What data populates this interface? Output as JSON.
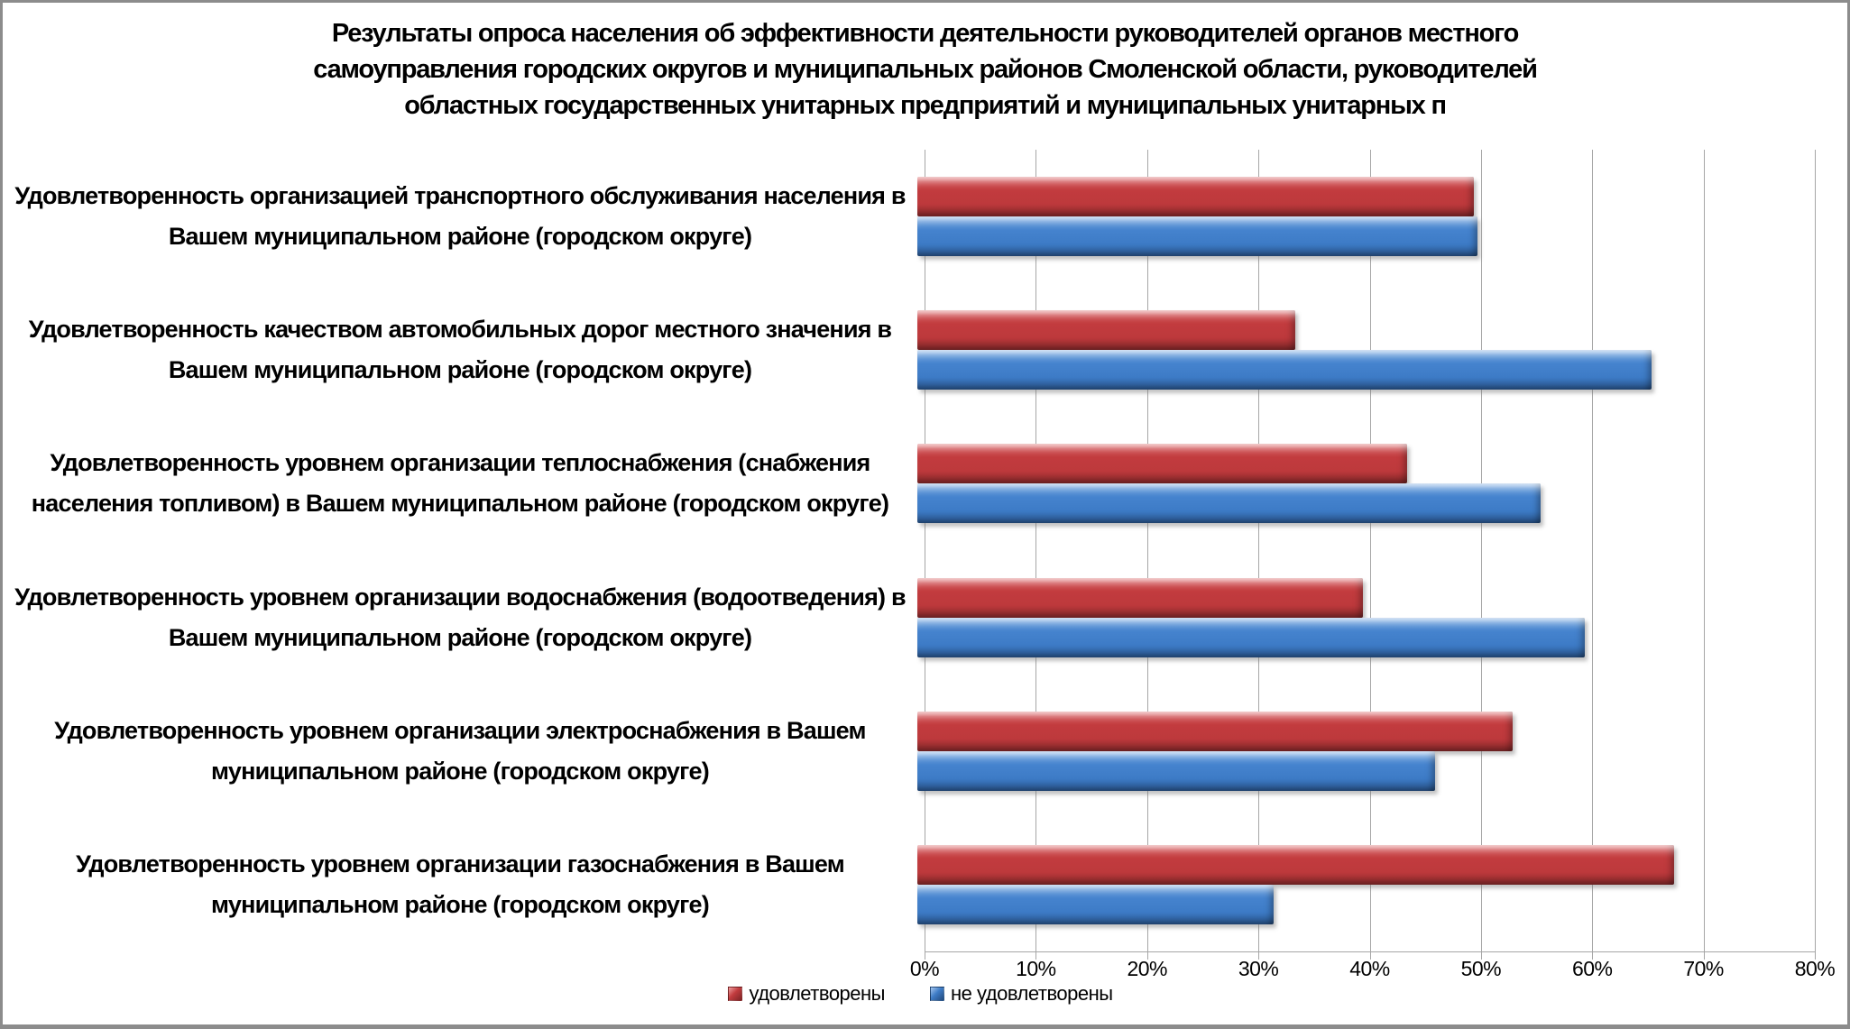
{
  "title_lines": [
    "Результаты опроса населения об эффективности деятельности руководителей органов местного",
    "самоуправления городских округов и муниципальных районов Смоленской области, руководителей",
    "областных государственных унитарных предприятий и муниципальных унитарных п"
  ],
  "colors": {
    "satisfied_bar": "#C23B3E",
    "not_satisfied_bar": "#3E7CC7",
    "gridline": "#A6A6A6",
    "frame_border": "#8C8C8C",
    "text": "#000000"
  },
  "chart_data": {
    "type": "bar",
    "orientation": "horizontal",
    "title": "Результаты опроса населения об эффективности деятельности руководителей органов местного самоуправления городских округов и муниципальных районов Смоленской области, руководителей областных государственных унитарных предприятий и муниципальных унитарных п",
    "xlabel": "",
    "ylabel": "",
    "xlim": [
      0,
      80
    ],
    "x_ticks": [
      "0%",
      "10%",
      "20%",
      "30%",
      "40%",
      "50%",
      "60%",
      "70%",
      "80%"
    ],
    "grid": true,
    "legend_position": "bottom",
    "categories": [
      "Удовлетворенность организацией транспортного обслуживания населения в Вашем муниципальном районе (городском округе)",
      "Удовлетворенность качеством автомобильных дорог местного значения в Вашем муниципальном районе (городском округе)",
      "Удовлетворенность уровнем организации теплоснабжения (снабжения населения топливом) в Вашем муниципальном районе (городском округе)",
      "Удовлетворенность уровнем организации водоснабжения (водоотведения) в Вашем муниципальном районе (городском округе)",
      "Удовлетворенность уровнем организации электроснабжения в Вашем муниципальном районе (городском округе)",
      "Удовлетворенность уровнем организации газоснабжения в Вашем муниципальном районе (городском округе)"
    ],
    "series": [
      {
        "name": "удовлетворены",
        "color": "#C23B3E",
        "values": [
          50,
          34,
          44,
          40,
          53.5,
          68
        ]
      },
      {
        "name": "не удовлетворены",
        "color": "#3E7CC7",
        "values": [
          50.3,
          66,
          56,
          60,
          46.5,
          32
        ]
      }
    ]
  }
}
